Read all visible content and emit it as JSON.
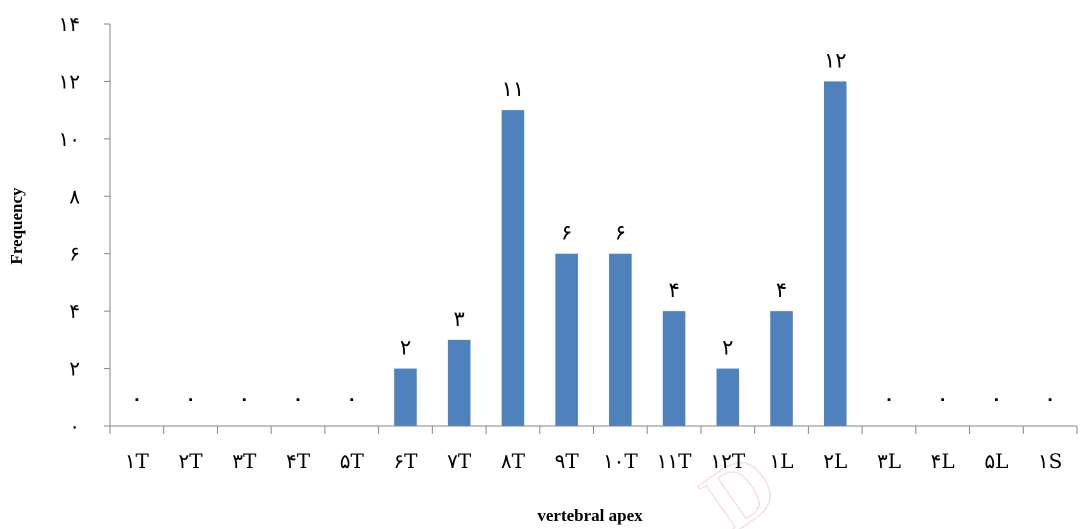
{
  "chart_data": {
    "type": "bar",
    "categories": [
      "١T",
      "٢T",
      "٣T",
      "۴T",
      "۵T",
      "۶T",
      "٧T",
      "٨T",
      "٩T",
      "١٠T",
      "١١T",
      "١٢T",
      "١L",
      "٢L",
      "٣L",
      "۴L",
      "۵L",
      "١S"
    ],
    "values": [
      0,
      0,
      0,
      0,
      0,
      2,
      3,
      11,
      6,
      6,
      4,
      2,
      4,
      12,
      0,
      0,
      0,
      0
    ],
    "data_labels": [
      "٠",
      "٠",
      "٠",
      "٠",
      "٠",
      "٢",
      "٣",
      "١١",
      "۶",
      "۶",
      "۴",
      "٢",
      "۴",
      "١٢",
      "٠",
      "٠",
      "٠",
      "٠"
    ],
    "ylim": [
      0,
      14
    ],
    "yticks": [
      0,
      2,
      4,
      6,
      8,
      10,
      12,
      14
    ],
    "ytick_labels": [
      "٠",
      "٢",
      "۴",
      "۶",
      "٨",
      "١٠",
      "١٢",
      "١۴"
    ],
    "xlabel": "vertebral apex",
    "ylabel": "Frequency",
    "grid": false,
    "bar_color": "#4f81bd",
    "watermark": "D"
  }
}
